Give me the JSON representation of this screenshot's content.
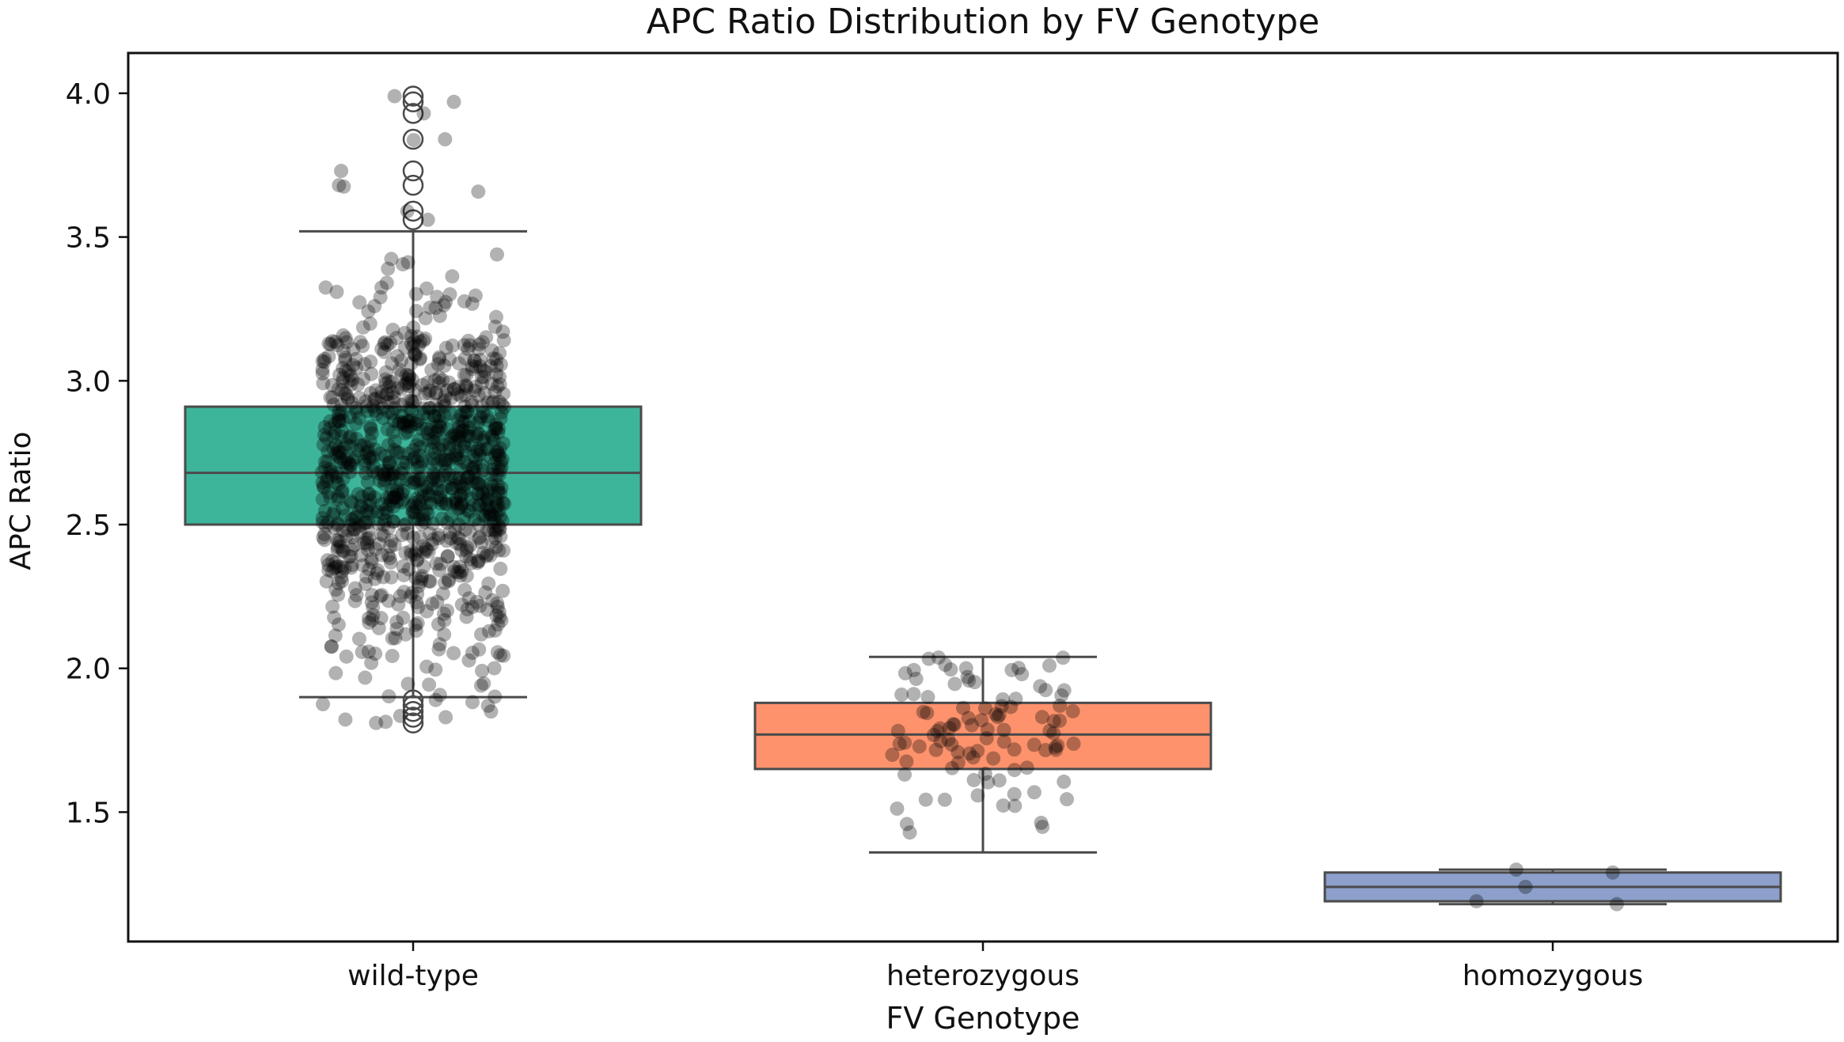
{
  "chart_data": {
    "type": "box",
    "title": "APC Ratio Distribution by FV Genotype",
    "xlabel": "FV Genotype",
    "ylabel": "APC Ratio",
    "ylim": [
      1.05,
      4.14
    ],
    "yticks": [
      1.5,
      2.0,
      2.5,
      3.0,
      3.5,
      4.0
    ],
    "ytick_labels": [
      "1.5",
      "2.0",
      "2.5",
      "3.0",
      "3.5",
      "4.0"
    ],
    "categories": [
      "wild-type",
      "heterozygous",
      "homozygous"
    ],
    "grid": false,
    "colors": {
      "wild-type": "#3db59a",
      "heterozygous": "#fd926c",
      "homozygous": "#8ca0cb",
      "box_edge": "#4a4a4a",
      "points": "#000000"
    },
    "boxes": [
      {
        "category": "wild-type",
        "q1": 2.5,
        "median": 2.68,
        "q3": 2.91,
        "whisker_low": 1.9,
        "whisker_high": 3.52,
        "n_points": 1000,
        "outliers": [
          1.81,
          1.83,
          1.85,
          1.87,
          1.89,
          3.56,
          3.59,
          3.68,
          3.73,
          3.84,
          3.93,
          3.97,
          3.99
        ]
      },
      {
        "category": "heterozygous",
        "q1": 1.65,
        "median": 1.77,
        "q3": 1.88,
        "whisker_low": 1.36,
        "whisker_high": 2.04,
        "n_points": 100,
        "outliers": []
      },
      {
        "category": "homozygous",
        "q1": 1.19,
        "median": 1.24,
        "q3": 1.29,
        "whisker_low": 1.18,
        "whisker_high": 1.3,
        "n_points": 5,
        "points": [
          1.19,
          1.29,
          1.3,
          1.24,
          1.18
        ],
        "outliers": []
      }
    ]
  }
}
